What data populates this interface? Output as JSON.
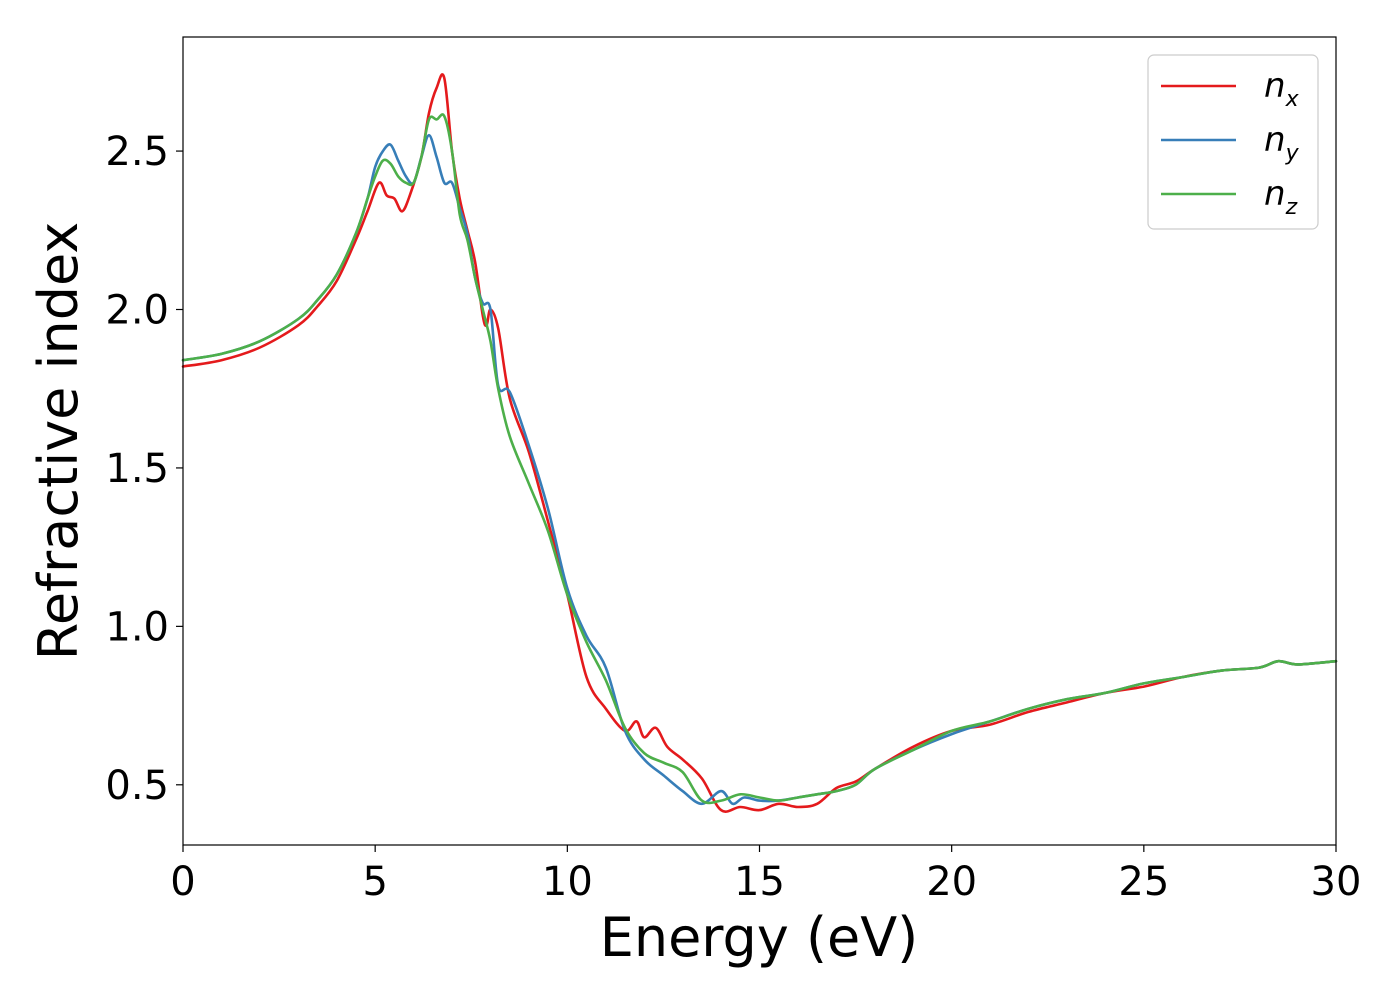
{
  "chart_data": {
    "type": "line",
    "title": "",
    "xlabel": "Energy (eV)",
    "ylabel": "Refractive index",
    "xlim": [
      0,
      30
    ],
    "ylim": [
      0.31,
      2.86
    ],
    "xticks": [
      0,
      5,
      10,
      15,
      20,
      25,
      30
    ],
    "xtick_labels": [
      "0",
      "5",
      "10",
      "15",
      "20",
      "25",
      "30"
    ],
    "yticks": [
      0.5,
      1.0,
      1.5,
      2.0,
      2.5
    ],
    "ytick_labels": [
      "0.5",
      "1.0",
      "1.5",
      "2.0",
      "2.5"
    ],
    "grid": false,
    "legend_position": "top-right",
    "series": [
      {
        "name": "n_x",
        "label_base": "n",
        "label_sub": "x",
        "color": "#e41a1c",
        "x": [
          0,
          1,
          2,
          3,
          3.5,
          4,
          4.5,
          4.8,
          5.1,
          5.3,
          5.5,
          5.7,
          5.9,
          6.2,
          6.4,
          6.6,
          6.8,
          7.0,
          7.2,
          7.4,
          7.6,
          7.8,
          7.9,
          8.0,
          8.2,
          8.5,
          9.0,
          9.5,
          10.0,
          10.5,
          11.0,
          11.5,
          11.8,
          12.0,
          12.3,
          12.6,
          13.0,
          13.5,
          14.0,
          14.5,
          15.0,
          15.5,
          16.0,
          16.5,
          17.0,
          17.5,
          18.0,
          19.0,
          20.0,
          21.0,
          22.0,
          23.0,
          24.0,
          25.0,
          26.0,
          27.0,
          28.0,
          28.5,
          29.0,
          30.0
        ],
        "y": [
          1.82,
          1.84,
          1.88,
          1.95,
          2.01,
          2.09,
          2.22,
          2.31,
          2.4,
          2.36,
          2.35,
          2.31,
          2.36,
          2.48,
          2.62,
          2.7,
          2.73,
          2.5,
          2.35,
          2.25,
          2.15,
          1.98,
          1.95,
          2.0,
          1.94,
          1.72,
          1.55,
          1.33,
          1.1,
          0.84,
          0.74,
          0.67,
          0.7,
          0.65,
          0.68,
          0.62,
          0.58,
          0.52,
          0.42,
          0.43,
          0.42,
          0.44,
          0.43,
          0.44,
          0.49,
          0.51,
          0.55,
          0.62,
          0.67,
          0.69,
          0.73,
          0.76,
          0.79,
          0.81,
          0.84,
          0.86,
          0.87,
          0.89,
          0.88,
          0.89
        ]
      },
      {
        "name": "n_y",
        "label_base": "n",
        "label_sub": "y",
        "color": "#377eb8",
        "x": [
          0,
          1,
          2,
          3,
          3.5,
          4,
          4.5,
          4.8,
          5.0,
          5.2,
          5.4,
          5.6,
          5.8,
          6.0,
          6.2,
          6.4,
          6.6,
          6.8,
          7.0,
          7.2,
          7.4,
          7.6,
          7.8,
          8.0,
          8.2,
          8.5,
          9.0,
          9.5,
          10.0,
          10.5,
          11.0,
          11.5,
          12.0,
          12.5,
          13.0,
          13.5,
          14.0,
          14.3,
          14.6,
          15.0,
          15.5,
          16.0,
          16.5,
          17.0,
          17.5,
          18.0,
          19.0,
          20.0,
          21.0,
          22.0,
          23.0,
          24.0,
          25.0,
          26.0,
          27.0,
          28.0,
          28.5,
          29.0,
          30.0
        ],
        "y": [
          1.84,
          1.86,
          1.9,
          1.97,
          2.03,
          2.11,
          2.24,
          2.35,
          2.45,
          2.5,
          2.52,
          2.47,
          2.42,
          2.4,
          2.48,
          2.55,
          2.48,
          2.4,
          2.4,
          2.32,
          2.24,
          2.1,
          2.02,
          2.0,
          1.76,
          1.74,
          1.57,
          1.37,
          1.12,
          0.97,
          0.87,
          0.67,
          0.58,
          0.53,
          0.48,
          0.44,
          0.48,
          0.44,
          0.46,
          0.45,
          0.45,
          0.46,
          0.47,
          0.48,
          0.5,
          0.55,
          0.61,
          0.66,
          0.7,
          0.74,
          0.77,
          0.79,
          0.82,
          0.84,
          0.86,
          0.87,
          0.89,
          0.88,
          0.89
        ]
      },
      {
        "name": "n_z",
        "label_base": "n",
        "label_sub": "z",
        "color": "#4daf4a",
        "x": [
          0,
          1,
          2,
          3,
          3.5,
          4,
          4.5,
          4.8,
          5.0,
          5.2,
          5.4,
          5.6,
          5.8,
          6.0,
          6.2,
          6.4,
          6.6,
          6.8,
          7.0,
          7.2,
          7.4,
          7.6,
          7.8,
          8.0,
          8.2,
          8.5,
          9.0,
          9.5,
          10.0,
          10.5,
          11.0,
          11.5,
          12.0,
          12.5,
          13.0,
          13.5,
          14.0,
          14.5,
          15.0,
          15.5,
          16.0,
          16.5,
          17.0,
          17.5,
          18.0,
          19.0,
          20.0,
          21.0,
          22.0,
          23.0,
          24.0,
          25.0,
          26.0,
          27.0,
          28.0,
          28.5,
          29.0,
          30.0
        ],
        "y": [
          1.84,
          1.86,
          1.9,
          1.97,
          2.03,
          2.11,
          2.24,
          2.35,
          2.42,
          2.47,
          2.46,
          2.42,
          2.4,
          2.4,
          2.48,
          2.6,
          2.6,
          2.61,
          2.5,
          2.3,
          2.22,
          2.1,
          2.0,
          1.9,
          1.75,
          1.6,
          1.45,
          1.3,
          1.1,
          0.95,
          0.83,
          0.68,
          0.6,
          0.57,
          0.54,
          0.45,
          0.45,
          0.47,
          0.46,
          0.45,
          0.46,
          0.47,
          0.48,
          0.5,
          0.55,
          0.61,
          0.67,
          0.7,
          0.74,
          0.77,
          0.79,
          0.82,
          0.84,
          0.86,
          0.87,
          0.89,
          0.88,
          0.89
        ]
      }
    ]
  }
}
